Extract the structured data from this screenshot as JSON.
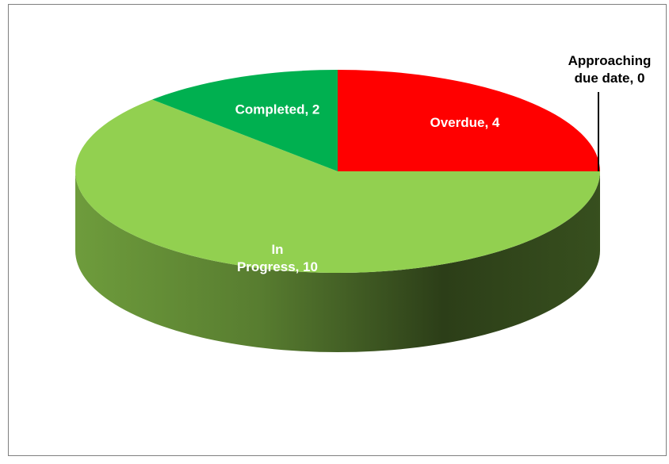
{
  "chart_data": {
    "type": "pie",
    "three_d": true,
    "categories": [
      "Overdue",
      "Approaching due date",
      "In Progress",
      "Completed"
    ],
    "values": [
      4,
      0,
      10,
      2
    ],
    "value_labels": [
      "Overdue, 4",
      "Approaching\ndue date, 0",
      "In\nProgress, 10",
      "Completed, 2"
    ],
    "colors": [
      "#ff0000",
      "#ffc000",
      "#92d050",
      "#00b050"
    ]
  }
}
